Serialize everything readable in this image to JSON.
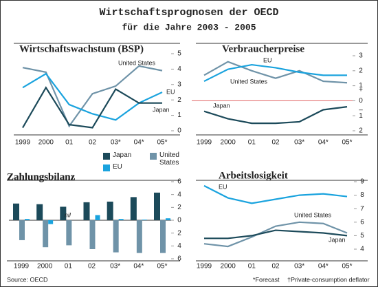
{
  "header": {
    "title": "Wirtschaftsprognosen der OECD",
    "subtitle": "für die Jahre 2003 - 2005"
  },
  "footer": {
    "source": "Source: OECD",
    "notes": [
      "*Forecast",
      "†Private-consumption deflator"
    ]
  },
  "chart_data": [
    {
      "type": "line",
      "title": "Wirtschaftswachstum (BSP)",
      "categories": [
        "1999",
        "2000",
        "01",
        "02",
        "03*",
        "04*",
        "05*"
      ],
      "series": [
        {
          "name": "United States",
          "color": "#6f93a8",
          "values": [
            4.1,
            3.8,
            0.3,
            2.4,
            2.9,
            4.2,
            3.9
          ]
        },
        {
          "name": "EU",
          "color": "#1aa3de",
          "values": [
            2.8,
            3.7,
            1.7,
            1.1,
            0.7,
            1.8,
            2.5
          ]
        },
        {
          "name": "Japan",
          "color": "#1c4a5a",
          "values": [
            0.2,
            2.8,
            0.4,
            0.2,
            2.7,
            1.8,
            1.8
          ]
        }
      ],
      "ylim": [
        0,
        5
      ],
      "yticks": [
        0,
        1,
        2,
        3,
        4,
        5
      ]
    },
    {
      "type": "line",
      "title": "Verbraucherpreise",
      "categories": [
        "1999",
        "2000",
        "01",
        "02",
        "03*",
        "04*",
        "05*"
      ],
      "series": [
        {
          "name": "United States",
          "color": "#6f93a8",
          "values": [
            1.7,
            2.6,
            2.0,
            1.5,
            2.0,
            1.3,
            1.2
          ]
        },
        {
          "name": "EU",
          "color": "#1aa3de",
          "values": [
            1.3,
            2.1,
            2.4,
            2.2,
            1.9,
            1.7,
            1.7
          ]
        },
        {
          "name": "Japan",
          "color": "#1c4a5a",
          "values": [
            -0.7,
            -1.2,
            -1.5,
            -1.5,
            -1.4,
            -0.6,
            -0.4
          ]
        }
      ],
      "ylim": [
        -2,
        3
      ],
      "yticks": [
        3,
        2,
        1,
        0,
        {
          "value": -1,
          "label": "1"
        },
        {
          "value": -2,
          "label": "2"
        }
      ],
      "axis_signs": [
        "+",
        "–"
      ],
      "zero_line_color": "#e06060"
    },
    {
      "type": "bar",
      "title": "Zahlungsbilanz",
      "categories": [
        "1999",
        "2000",
        "01",
        "02",
        "03*",
        "04*",
        "05*"
      ],
      "series": [
        {
          "name": "Japan",
          "color": "#1c4a5a",
          "values": [
            2.6,
            2.5,
            2.1,
            2.8,
            2.9,
            3.6,
            4.3
          ]
        },
        {
          "name": "United States",
          "color": "#6f93a8",
          "values": [
            -3.1,
            -4.2,
            -3.9,
            -4.5,
            -5.0,
            -5.1,
            -5.1
          ]
        },
        {
          "name": "EU",
          "color": "#1aa3de",
          "values": [
            0.2,
            -0.6,
            0,
            0.8,
            0.2,
            0.1,
            0.3
          ],
          "value_labels": [
            null,
            null,
            "nil",
            null,
            null,
            null,
            null
          ]
        }
      ],
      "ylim": [
        -6,
        6
      ],
      "yticks": [
        6,
        4,
        2,
        0,
        {
          "value": -2,
          "label": "2"
        },
        {
          "value": -4,
          "label": "4"
        },
        {
          "value": -6,
          "label": "6"
        }
      ]
    },
    {
      "type": "line",
      "title": "Arbeitslosigkeit",
      "categories": [
        "1999",
        "2000",
        "01",
        "02",
        "03*",
        "04*",
        "05*"
      ],
      "series": [
        {
          "name": "United States",
          "color": "#6f93a8",
          "values": [
            4.4,
            4.2,
            4.9,
            5.7,
            6.0,
            5.9,
            5.2
          ]
        },
        {
          "name": "EU",
          "color": "#1aa3de",
          "values": [
            8.7,
            7.8,
            7.4,
            7.7,
            8.0,
            8.1,
            7.9
          ]
        },
        {
          "name": "Japan",
          "color": "#1c4a5a",
          "values": [
            4.8,
            4.8,
            5.0,
            5.4,
            5.3,
            5.2,
            5.0
          ]
        }
      ],
      "ylim": [
        4,
        9
      ],
      "yticks": [
        9,
        8,
        7,
        6,
        5,
        4
      ]
    }
  ]
}
